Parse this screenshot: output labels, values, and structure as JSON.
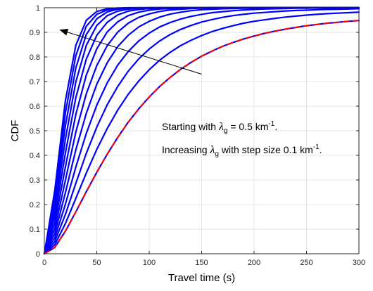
{
  "chart_data": {
    "type": "line",
    "xlabel": "Travel time (s)",
    "ylabel": "CDF",
    "xlim": [
      0,
      300
    ],
    "ylim": [
      0,
      1
    ],
    "x_ticks": [
      "0",
      "50",
      "100",
      "150",
      "200",
      "250",
      "300"
    ],
    "y_ticks": [
      "0",
      "0.1",
      "0.2",
      "0.3",
      "0.4",
      "0.5",
      "0.6",
      "0.7",
      "0.8",
      "0.9",
      "1"
    ],
    "grid": true,
    "colors": {
      "curves": "#0000ff",
      "dashed": "#ff0000",
      "grid": "#e6e6e6",
      "axis": "#262626"
    },
    "x": [
      0,
      10,
      20,
      30,
      40,
      50,
      60,
      70,
      80,
      90,
      100,
      110,
      120,
      130,
      140,
      150,
      160,
      170,
      180,
      190,
      200,
      210,
      220,
      230,
      240,
      250,
      260,
      270,
      280,
      290,
      300
    ],
    "series": [
      {
        "style": "solid",
        "values": [
          0,
          0.026,
          0.091,
          0.17,
          0.252,
          0.331,
          0.405,
          0.473,
          0.535,
          0.589,
          0.637,
          0.68,
          0.717,
          0.75,
          0.778,
          0.803,
          0.824,
          0.843,
          0.859,
          0.873,
          0.885,
          0.896,
          0.905,
          0.913,
          0.92,
          0.927,
          0.932,
          0.937,
          0.941,
          0.945,
          0.948
        ]
      },
      {
        "style": "solid",
        "values": [
          0,
          0.037,
          0.122,
          0.225,
          0.328,
          0.424,
          0.509,
          0.584,
          0.648,
          0.702,
          0.748,
          0.787,
          0.819,
          0.846,
          0.868,
          0.887,
          0.903,
          0.916,
          0.927,
          0.937,
          0.945,
          0.951,
          0.957,
          0.962,
          0.966,
          0.97,
          0.973,
          0.976,
          0.978,
          0.98,
          0.982
        ]
      },
      {
        "style": "solid",
        "values": [
          0,
          0.05,
          0.159,
          0.286,
          0.408,
          0.515,
          0.606,
          0.68,
          0.742,
          0.792,
          0.832,
          0.865,
          0.891,
          0.912,
          0.928,
          0.942,
          0.952,
          0.961,
          0.968,
          0.973,
          0.978,
          0.981,
          0.984,
          0.987,
          0.989,
          0.99,
          0.992,
          0.993,
          0.994,
          0.995,
          0.996
        ]
      },
      {
        "style": "solid",
        "values": [
          0,
          0.065,
          0.2,
          0.352,
          0.489,
          0.604,
          0.695,
          0.767,
          0.822,
          0.865,
          0.897,
          0.922,
          0.94,
          0.954,
          0.965,
          0.973,
          0.98,
          0.984,
          0.988,
          0.991,
          0.993,
          0.995,
          0.996,
          0.997,
          0.998,
          0.998,
          0.999,
          0.999,
          0.999,
          0.999,
          1
        ]
      },
      {
        "style": "solid",
        "values": [
          0,
          0.082,
          0.247,
          0.422,
          0.571,
          0.689,
          0.777,
          0.842,
          0.888,
          0.922,
          0.945,
          0.962,
          0.974,
          0.982,
          0.988,
          0.992,
          0.994,
          0.996,
          0.997,
          0.998,
          0.999,
          0.999,
          0.999,
          1,
          1,
          1,
          1,
          1,
          1,
          1,
          1
        ]
      },
      {
        "style": "solid",
        "values": [
          0,
          0.102,
          0.297,
          0.494,
          0.65,
          0.765,
          0.846,
          0.901,
          0.937,
          0.961,
          0.975,
          0.985,
          0.991,
          0.994,
          0.997,
          0.998,
          0.999,
          0.999,
          0.999,
          1,
          1,
          1,
          1,
          1,
          1,
          1,
          1,
          1,
          1,
          1,
          1
        ]
      },
      {
        "style": "solid",
        "values": [
          0,
          0.125,
          0.351,
          0.566,
          0.726,
          0.833,
          0.902,
          0.943,
          0.968,
          0.982,
          0.99,
          0.995,
          0.997,
          0.999,
          0.999,
          1,
          1,
          1,
          1,
          1,
          1,
          1,
          1,
          1,
          1,
          1,
          1,
          1,
          1,
          1,
          1
        ]
      },
      {
        "style": "solid",
        "values": [
          0,
          0.15,
          0.407,
          0.634,
          0.791,
          0.888,
          0.941,
          0.971,
          0.986,
          0.993,
          0.997,
          0.998,
          0.999,
          1,
          1,
          1,
          1,
          1,
          1,
          1,
          1,
          1,
          1,
          1,
          1,
          1,
          1,
          1,
          1,
          1,
          1
        ]
      },
      {
        "style": "solid",
        "values": [
          0,
          0.176,
          0.463,
          0.698,
          0.847,
          0.928,
          0.968,
          0.986,
          0.994,
          0.998,
          0.999,
          1,
          1,
          1,
          1,
          1,
          1,
          1,
          1,
          1,
          1,
          1,
          1,
          1,
          1,
          1,
          1,
          1,
          1,
          1,
          1
        ]
      },
      {
        "style": "solid",
        "values": [
          0,
          0.203,
          0.518,
          0.755,
          0.891,
          0.955,
          0.983,
          0.994,
          0.998,
          0.999,
          1,
          1,
          1,
          1,
          1,
          1,
          1,
          1,
          1,
          1,
          1,
          1,
          1,
          1,
          1,
          1,
          1,
          1,
          1,
          1,
          1
        ]
      },
      {
        "style": "solid",
        "values": [
          0,
          0.231,
          0.571,
          0.805,
          0.925,
          0.973,
          0.991,
          0.997,
          0.999,
          1,
          1,
          1,
          1,
          1,
          1,
          1,
          1,
          1,
          1,
          1,
          1,
          1,
          1,
          1,
          1,
          1,
          1,
          1,
          1,
          1,
          1
        ]
      },
      {
        "style": "solid",
        "values": [
          0,
          0.259,
          0.62,
          0.847,
          0.949,
          0.985,
          0.996,
          0.999,
          1,
          1,
          1,
          1,
          1,
          1,
          1,
          1,
          1,
          1,
          1,
          1,
          1,
          1,
          1,
          1,
          1,
          1,
          1,
          1,
          1,
          1,
          1
        ]
      },
      {
        "style": "dashed",
        "values": [
          0,
          0.026,
          0.091,
          0.17,
          0.252,
          0.331,
          0.405,
          0.473,
          0.535,
          0.589,
          0.637,
          0.68,
          0.717,
          0.75,
          0.778,
          0.803,
          0.824,
          0.843,
          0.859,
          0.873,
          0.885,
          0.896,
          0.905,
          0.913,
          0.92,
          0.927,
          0.932,
          0.937,
          0.941,
          0.945,
          0.948
        ]
      }
    ],
    "annotations": [
      {
        "prefix": "Starting with ",
        "symbol": "λ",
        "sub": "g",
        "mid": " = 0.5 km",
        "sup": "-1",
        "suffix": "."
      },
      {
        "prefix": "Increasing ",
        "symbol": "λ",
        "sub": "g",
        "mid": " with step size  0.1 km",
        "sup": "-1",
        "suffix": "."
      }
    ],
    "arrow": {
      "from": [
        150,
        0.73
      ],
      "to": [
        15,
        0.91
      ]
    }
  }
}
